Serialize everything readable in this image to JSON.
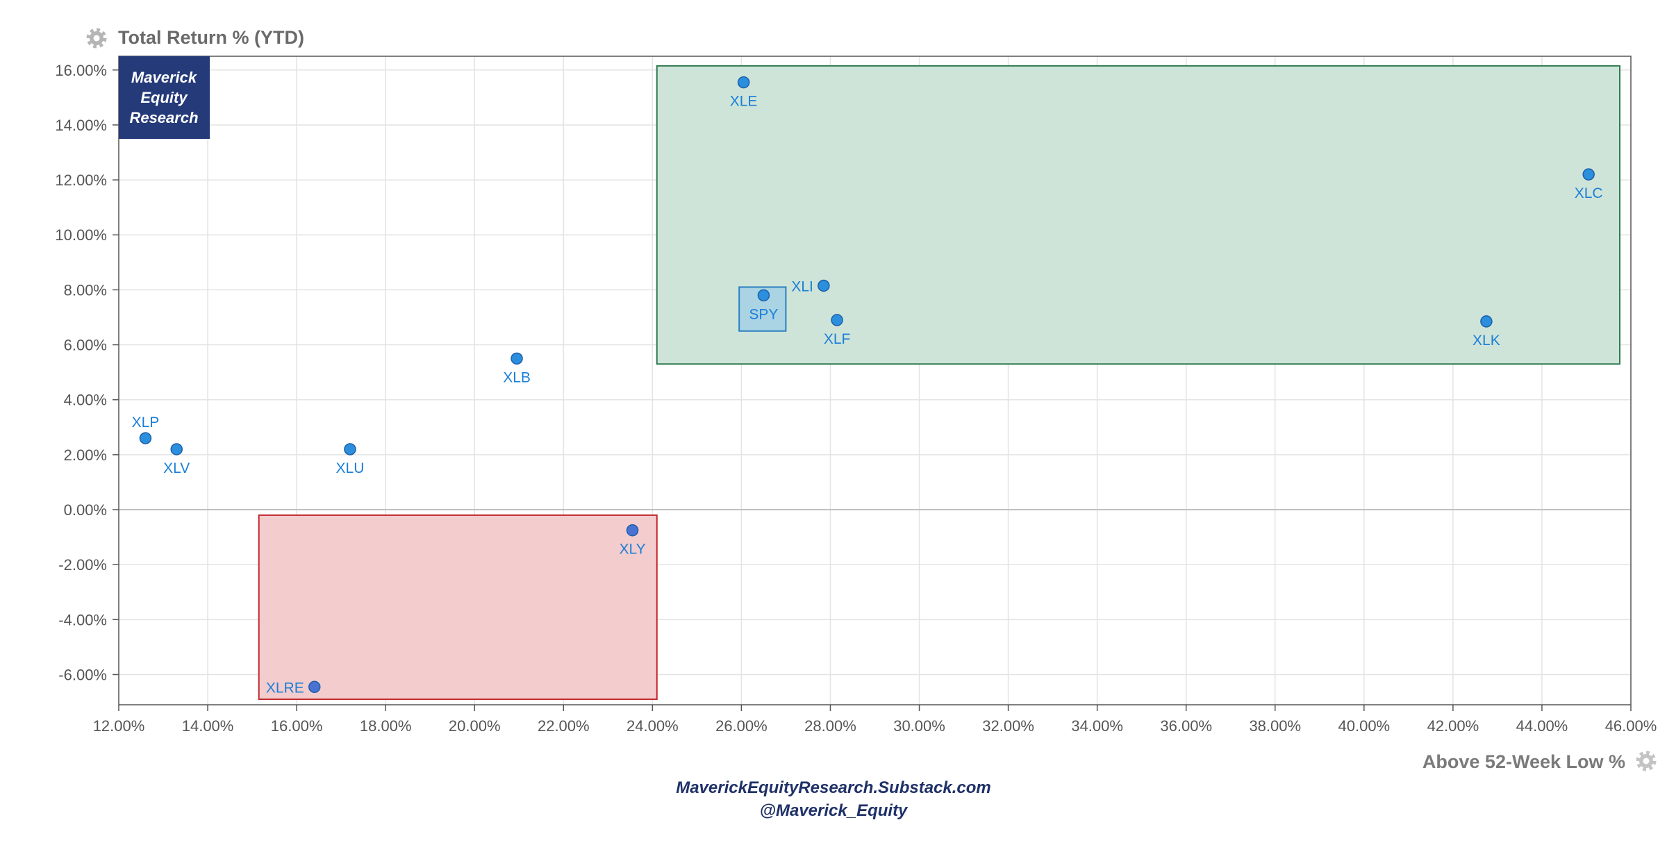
{
  "chart_data": {
    "type": "scatter",
    "title": "Total Return % (YTD)",
    "xlabel": "Above 52-Week Low %",
    "ylabel": "Total Return % (YTD)",
    "xlim": [
      12,
      46
    ],
    "ylim": [
      -7.1,
      16.5
    ],
    "x_ticks": [
      "12.00%",
      "14.00%",
      "16.00%",
      "18.00%",
      "20.00%",
      "22.00%",
      "24.00%",
      "26.00%",
      "28.00%",
      "30.00%",
      "32.00%",
      "34.00%",
      "36.00%",
      "38.00%",
      "40.00%",
      "42.00%",
      "44.00%",
      "46.00%"
    ],
    "y_ticks": [
      "16.00%",
      "14.00%",
      "12.00%",
      "10.00%",
      "8.00%",
      "6.00%",
      "4.00%",
      "2.00%",
      "0.00%",
      "-2.00%",
      "-4.00%",
      "-6.00%"
    ],
    "grid": true,
    "points": [
      {
        "label": "XLE",
        "x": 26.05,
        "y": 15.55,
        "color": "#2b8fde"
      },
      {
        "label": "XLC",
        "x": 45.05,
        "y": 12.2,
        "color": "#2b8fde"
      },
      {
        "label": "XLI",
        "x": 27.85,
        "y": 8.15,
        "color": "#2b8fde"
      },
      {
        "label": "SPY",
        "x": 26.5,
        "y": 7.8,
        "color": "#2b8fde"
      },
      {
        "label": "XLF",
        "x": 28.15,
        "y": 6.9,
        "color": "#2b8fde"
      },
      {
        "label": "XLK",
        "x": 42.75,
        "y": 6.85,
        "color": "#2b8fde"
      },
      {
        "label": "XLB",
        "x": 20.95,
        "y": 5.5,
        "color": "#2b8fde"
      },
      {
        "label": "XLP",
        "x": 12.6,
        "y": 2.6,
        "color": "#2b8fde"
      },
      {
        "label": "XLV",
        "x": 13.3,
        "y": 2.2,
        "color": "#2b8fde"
      },
      {
        "label": "XLU",
        "x": 17.2,
        "y": 2.2,
        "color": "#2b8fde"
      },
      {
        "label": "XLY",
        "x": 23.55,
        "y": -0.75,
        "color": "#4a72d2"
      },
      {
        "label": "XLRE",
        "x": 16.4,
        "y": -6.45,
        "color": "#4a72d2"
      }
    ],
    "regions": [
      {
        "x": [
          24.1,
          45.75
        ],
        "y": [
          5.3,
          16.15
        ],
        "fill": "#cfe4d9",
        "stroke": "#2e7b50"
      },
      {
        "x": [
          15.15,
          24.1
        ],
        "y": [
          -6.9,
          -0.2
        ],
        "fill": "#f3cccd",
        "stroke": "#c2272d"
      }
    ],
    "highlight": {
      "x": [
        25.95,
        27.0
      ],
      "y": [
        6.5,
        8.1
      ],
      "fill": "#9ecde6",
      "stroke": "#2b7fc1"
    }
  },
  "logo": {
    "line1": "Maverick",
    "line2": "Equity",
    "line3": "Research"
  },
  "icons": {
    "title": "gear-icon",
    "xlabel": "gear-icon"
  },
  "footer": {
    "site": "MaverickEquityResearch.Substack.com",
    "handle": "@Maverick_Equity"
  },
  "colors": {
    "label_text": "#1a7fd8",
    "grid": "#e3e3e3",
    "axis_text": "#555555",
    "logo_bg": "#253a78"
  }
}
